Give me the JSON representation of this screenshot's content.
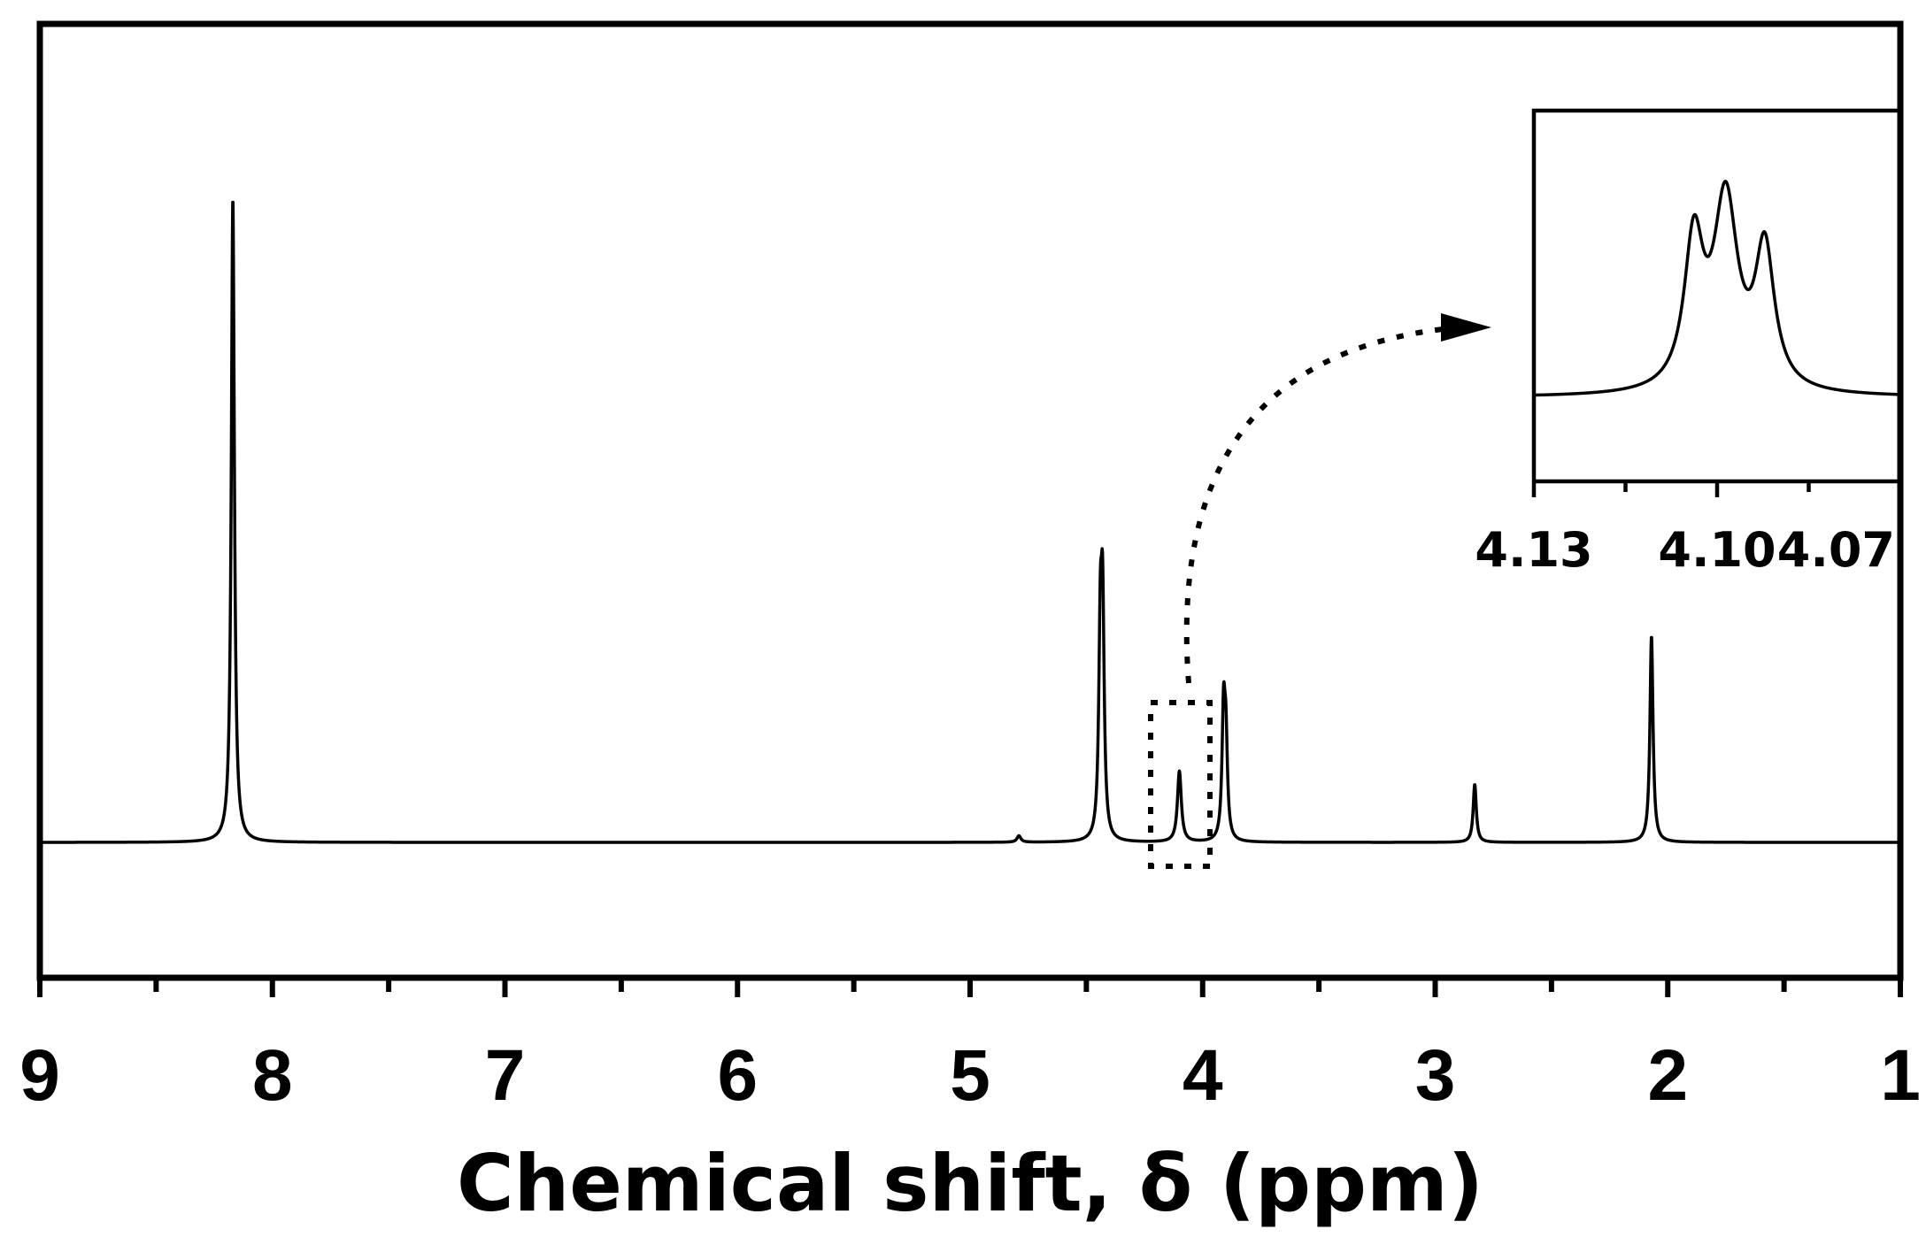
{
  "chart_data": [
    {
      "type": "line",
      "xlabel": "Chemical shift, δ (ppm)",
      "ylabel": "",
      "title": "",
      "x_reversed": true,
      "xlim": [
        9,
        1
      ],
      "ylim": [
        -0.21,
        1.27
      ],
      "xticks": [
        9,
        8,
        7,
        6,
        5,
        4,
        3,
        2,
        1
      ],
      "xtick_labels": [
        "9",
        "8",
        "7",
        "6",
        "5",
        "4",
        "3",
        "2",
        "1"
      ],
      "minor_xticks_step": 0.5,
      "grid": false,
      "baseline": 0,
      "peaks": [
        {
          "shift": 8.17,
          "height": 1.0,
          "width": 0.008
        },
        {
          "shift": 4.43,
          "height": 0.33,
          "width": 0.008
        },
        {
          "shift": 4.44,
          "height": 0.29,
          "width": 0.008
        },
        {
          "shift": 4.1,
          "height": 0.11,
          "width": 0.01
        },
        {
          "shift": 3.91,
          "height": 0.19,
          "width": 0.008
        },
        {
          "shift": 3.9,
          "height": 0.14,
          "width": 0.008
        },
        {
          "shift": 2.83,
          "height": 0.09,
          "width": 0.008
        },
        {
          "shift": 2.07,
          "height": 0.32,
          "width": 0.008
        },
        {
          "shift": 4.79,
          "height": 0.01,
          "width": 0.01
        }
      ]
    },
    {
      "type": "line",
      "inset": true,
      "xlim": [
        4.13,
        4.07
      ],
      "xtick_labels": [
        "4.13",
        "4.10",
        "4.07"
      ],
      "xticks": [
        4.13,
        4.1,
        4.07
      ],
      "minor_xticks": [
        4.115,
        4.085
      ],
      "peaks": [
        {
          "shift": 4.1038,
          "height": 0.62,
          "width": 0.0019
        },
        {
          "shift": 4.0986,
          "height": 0.8,
          "width": 0.0024
        },
        {
          "shift": 4.0922,
          "height": 0.59,
          "width": 0.0019
        }
      ]
    }
  ]
}
